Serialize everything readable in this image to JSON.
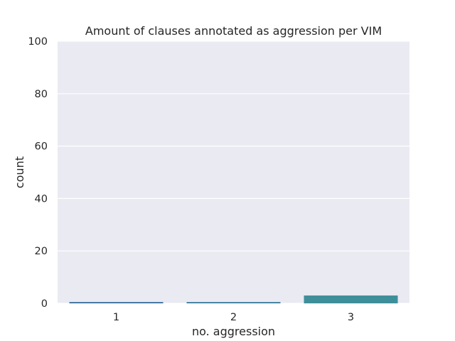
{
  "chart_data": {
    "type": "bar",
    "title": "Amount of clauses annotated as aggression per VIM",
    "xlabel": "no. aggression",
    "ylabel": "count",
    "categories": [
      "1",
      "2",
      "3"
    ],
    "values": [
      0.5,
      0.5,
      3
    ],
    "ylim": [
      0,
      100
    ],
    "yticks": [
      "0",
      "20",
      "40",
      "60",
      "80",
      "100"
    ],
    "colors": [
      "#3a6f9e",
      "#3a7e9c",
      "#3f8f9b"
    ],
    "background": "#eaeaf2",
    "grid": true,
    "legend": "none"
  }
}
